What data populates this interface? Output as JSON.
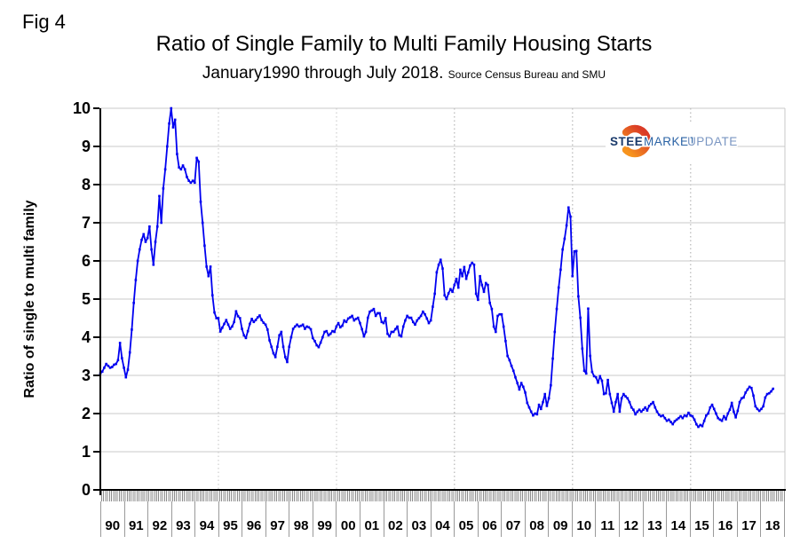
{
  "fig_label": "Fig 4",
  "logo": {
    "steel": "STEEL",
    "market": "MARKET",
    "update": "UPDATE",
    "colors": {
      "steel": "#1a3a6b",
      "market": "#2b63a5",
      "update": "#7a96c2",
      "arc_top": "#f7941e",
      "arc_bottom": "#da3b26"
    }
  },
  "chart_data": {
    "type": "line",
    "title": "Ratio of Single Family to Multi Family Housing Starts",
    "subtitle": "January1990 through July 2018.",
    "source": "Source Census Bureau and SMU",
    "ylabel": "Ratio of single to multi family",
    "ylim": [
      0,
      10
    ],
    "ytick_interval": 1,
    "ytick_labels": [
      "0",
      "1",
      "2",
      "3",
      "4",
      "5",
      "6",
      "7",
      "8",
      "9",
      "10"
    ],
    "grid": "horizontal-solid, vertical-dashed-every-5-years",
    "legend": "none",
    "line_color": "#0000f0",
    "gridline_color": "#c9c9c9",
    "dashed_gridline_color": "#c4c4c4",
    "x_start": "1990-01",
    "x_end": "2018-07",
    "x_year_labels": [
      "90",
      "91",
      "92",
      "93",
      "94",
      "95",
      "96",
      "97",
      "98",
      "99",
      "00",
      "01",
      "02",
      "03",
      "04",
      "05",
      "06",
      "07",
      "08",
      "09",
      "10",
      "11",
      "12",
      "13",
      "14",
      "15",
      "16",
      "17",
      "18"
    ],
    "grid_vertical_dashed_years": [
      1995,
      2000,
      2005,
      2010,
      2015
    ],
    "series": [
      {
        "name": "Ratio of single family to multi family housing starts",
        "start_year": 1990,
        "monthly_values": [
          3.05,
          3.1,
          3.2,
          3.3,
          3.25,
          3.2,
          3.22,
          3.28,
          3.3,
          3.4,
          3.85,
          3.45,
          3.2,
          2.95,
          3.15,
          3.6,
          4.2,
          4.9,
          5.5,
          6.0,
          6.3,
          6.55,
          6.7,
          6.5,
          6.6,
          6.9,
          6.3,
          5.9,
          6.5,
          6.9,
          7.7,
          7.0,
          7.9,
          8.4,
          9.0,
          9.6,
          10.0,
          9.5,
          9.7,
          8.8,
          8.45,
          8.4,
          8.5,
          8.4,
          8.2,
          8.1,
          8.05,
          8.1,
          8.05,
          8.7,
          8.6,
          7.55,
          7.0,
          6.4,
          5.85,
          5.6,
          5.85,
          5.1,
          4.65,
          4.5,
          4.5,
          4.15,
          4.25,
          4.35,
          4.45,
          4.33,
          4.22,
          4.28,
          4.4,
          4.68,
          4.55,
          4.5,
          4.22,
          4.05,
          3.98,
          4.16,
          4.35,
          4.48,
          4.4,
          4.45,
          4.52,
          4.57,
          4.45,
          4.38,
          4.33,
          4.2,
          3.92,
          3.75,
          3.58,
          3.48,
          3.75,
          4.05,
          4.14,
          3.75,
          3.48,
          3.35,
          3.75,
          4.0,
          4.22,
          4.28,
          4.33,
          4.28,
          4.3,
          4.33,
          4.22,
          4.28,
          4.26,
          4.21,
          3.98,
          3.9,
          3.79,
          3.74,
          3.86,
          4.0,
          4.14,
          4.16,
          4.05,
          4.09,
          4.16,
          4.14,
          4.28,
          4.37,
          4.26,
          4.3,
          4.44,
          4.4,
          4.49,
          4.52,
          4.56,
          4.44,
          4.48,
          4.51,
          4.37,
          4.21,
          4.02,
          4.14,
          4.51,
          4.67,
          4.7,
          4.74,
          4.56,
          4.63,
          4.63,
          4.4,
          4.37,
          4.5,
          4.09,
          4.02,
          4.14,
          4.14,
          4.21,
          4.28,
          4.05,
          4.02,
          4.28,
          4.44,
          4.56,
          4.51,
          4.51,
          4.4,
          4.33,
          4.44,
          4.5,
          4.56,
          4.67,
          4.6,
          4.49,
          4.37,
          4.44,
          4.8,
          5.14,
          5.7,
          5.9,
          6.03,
          5.8,
          5.1,
          5.0,
          5.15,
          5.26,
          5.19,
          5.37,
          5.53,
          5.3,
          5.77,
          5.6,
          5.84,
          5.53,
          5.7,
          5.88,
          5.95,
          5.9,
          5.14,
          4.98,
          5.6,
          5.37,
          5.19,
          5.42,
          5.37,
          4.9,
          4.74,
          4.28,
          4.14,
          4.56,
          4.6,
          4.6,
          4.28,
          3.9,
          3.51,
          3.4,
          3.25,
          3.12,
          2.95,
          2.8,
          2.63,
          2.8,
          2.7,
          2.55,
          2.28,
          2.16,
          2.05,
          1.95,
          2.0,
          1.98,
          2.23,
          2.12,
          2.3,
          2.51,
          2.2,
          2.4,
          2.74,
          3.44,
          4.14,
          4.74,
          5.3,
          5.77,
          6.3,
          6.58,
          6.93,
          7.4,
          7.16,
          5.6,
          6.25,
          6.26,
          5.07,
          4.51,
          3.7,
          3.12,
          3.05,
          4.75,
          3.51,
          3.09,
          2.98,
          2.95,
          2.81,
          2.98,
          2.86,
          2.51,
          2.53,
          2.88,
          2.51,
          2.28,
          2.05,
          2.3,
          2.51,
          2.05,
          2.4,
          2.51,
          2.45,
          2.4,
          2.3,
          2.16,
          2.1,
          1.98,
          2.05,
          2.1,
          2.05,
          2.1,
          2.16,
          2.08,
          2.2,
          2.25,
          2.3,
          2.16,
          2.05,
          1.97,
          1.93,
          1.95,
          1.88,
          1.81,
          1.84,
          1.78,
          1.72,
          1.8,
          1.84,
          1.88,
          1.93,
          1.88,
          1.95,
          1.93,
          2.02,
          1.95,
          1.93,
          1.84,
          1.72,
          1.65,
          1.7,
          1.67,
          1.81,
          1.95,
          2.0,
          2.16,
          2.23,
          2.12,
          2.0,
          1.88,
          1.84,
          1.81,
          1.93,
          1.85,
          2.0,
          2.1,
          2.28,
          2.05,
          1.9,
          2.07,
          2.3,
          2.4,
          2.42,
          2.55,
          2.63,
          2.7,
          2.67,
          2.47,
          2.19,
          2.12,
          2.07,
          2.12,
          2.19,
          2.42,
          2.51,
          2.53,
          2.58,
          2.65
        ]
      }
    ]
  }
}
